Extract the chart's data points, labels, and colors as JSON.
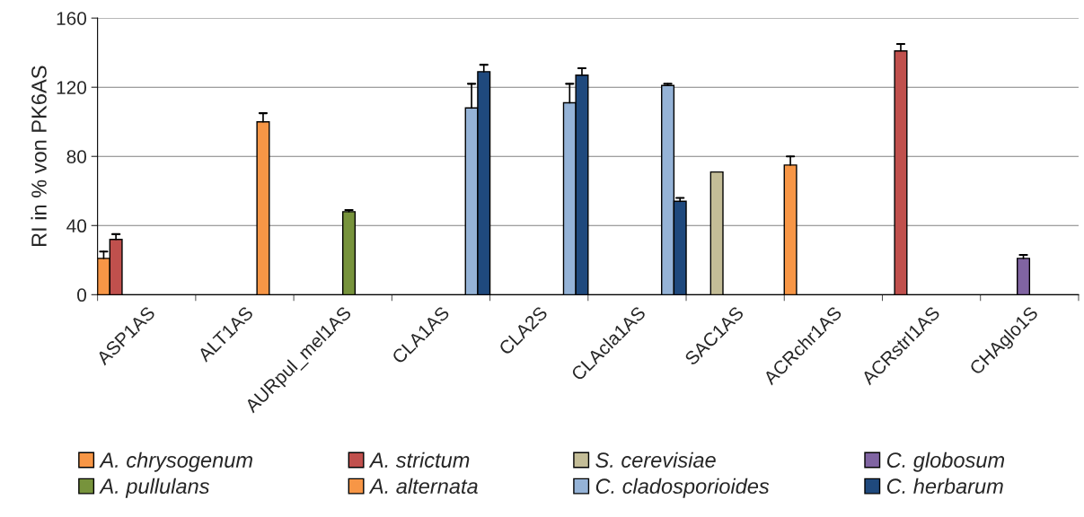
{
  "chart_data": {
    "type": "bar",
    "ylabel": "RI in % von PK6AS",
    "categories": [
      "ASP1AS",
      "ALT1AS",
      "AURpul_mel1AS",
      "CLA1AS",
      "CLA2S",
      "CLAcla1AS",
      "SAC1AS",
      "ACRchr1AS",
      "ACRstrI1AS",
      "CHAglo1S"
    ],
    "series": [
      {
        "name": "A. chrysogenum",
        "color": "#f79646",
        "values": [
          21,
          null,
          null,
          null,
          null,
          null,
          null,
          75,
          null,
          null
        ],
        "errors": [
          [
            21,
            25
          ],
          null,
          null,
          null,
          null,
          null,
          null,
          [
            75,
            80
          ],
          null,
          null
        ]
      },
      {
        "name": "A. strictum",
        "color": "#c0504d",
        "values": [
          32,
          null,
          null,
          null,
          null,
          null,
          null,
          null,
          141,
          null
        ],
        "errors": [
          [
            32,
            35
          ],
          null,
          null,
          null,
          null,
          null,
          null,
          null,
          [
            141,
            145
          ],
          null
        ]
      },
      {
        "name": "S. cerevisiae",
        "color": "#c4bd97",
        "values": [
          null,
          null,
          null,
          null,
          null,
          null,
          71,
          null,
          null,
          null
        ]
      },
      {
        "name": "C. globosum",
        "color": "#8064a2",
        "values": [
          null,
          null,
          null,
          null,
          null,
          null,
          null,
          null,
          null,
          21
        ],
        "errors": [
          null,
          null,
          null,
          null,
          null,
          null,
          null,
          null,
          null,
          [
            21,
            23
          ]
        ]
      },
      {
        "name": "A. pullulans",
        "color": "#77933c",
        "values": [
          null,
          null,
          48,
          null,
          null,
          null,
          null,
          null,
          null,
          null
        ],
        "errors": [
          null,
          null,
          [
            48,
            49
          ],
          null,
          null,
          null,
          null,
          null,
          null,
          null
        ]
      },
      {
        "name": "A. alternata",
        "color": "#f79646",
        "values": [
          null,
          100,
          null,
          null,
          null,
          null,
          null,
          null,
          null,
          null
        ],
        "errors": [
          null,
          [
            100,
            105
          ],
          null,
          null,
          null,
          null,
          null,
          null,
          null,
          null
        ]
      },
      {
        "name": "C. cladosporioides",
        "color": "#95b3d7",
        "values": [
          null,
          null,
          null,
          108,
          111,
          121,
          null,
          null,
          null,
          null
        ],
        "errors": [
          null,
          null,
          null,
          [
            108,
            122
          ],
          [
            111,
            122
          ],
          [
            121,
            122
          ],
          null,
          null,
          null,
          null
        ]
      },
      {
        "name": "C. herbarum",
        "color": "#1f497d",
        "values": [
          null,
          null,
          null,
          129,
          127,
          54,
          null,
          null,
          null,
          null
        ],
        "errors": [
          null,
          null,
          null,
          [
            129,
            133
          ],
          [
            127,
            131
          ],
          [
            54,
            56
          ],
          null,
          null,
          null,
          null
        ]
      }
    ],
    "ylim": [
      0,
      160
    ],
    "yticks": [
      0,
      40,
      80,
      120,
      160
    ],
    "grid": "y",
    "legend": "bottom"
  }
}
